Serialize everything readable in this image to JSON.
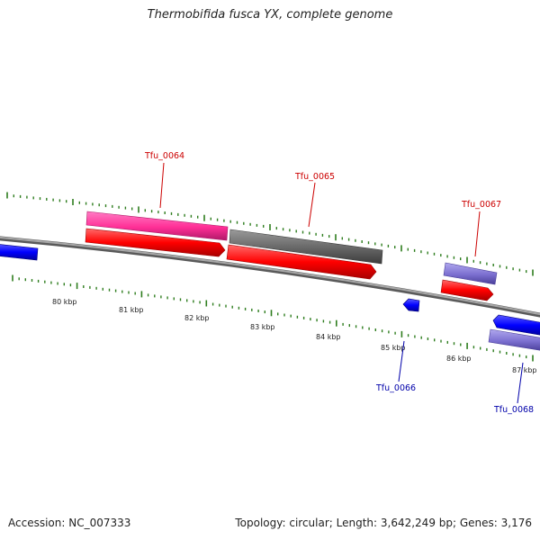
{
  "title": "Thermobifida fusca YX, complete genome",
  "footer": {
    "accession": "Accession: NC_007333",
    "summary": "Topology: circular; Length: 3,642,249 bp; Genes: 3,176"
  },
  "colors": {
    "backbone": "#8a8a8a",
    "tick": "#2e7d1e",
    "label_top": "#cc0000",
    "label_bottom": "#0000aa",
    "cds_forward": "#ff0000",
    "cds_reverse": "#0000ff",
    "gene_pink": "#ff3fa0",
    "gene_gray": "#6e6e6e",
    "gene_purple": "#7b6fd0"
  },
  "scale_labels": [
    "80 kbp",
    "81 kbp",
    "82 kbp",
    "83 kbp",
    "84 kbp",
    "85 kbp",
    "86 kbp",
    "87 kbp"
  ],
  "gene_labels": {
    "tfu_0064": "Tfu_0064",
    "tfu_0065": "Tfu_0065",
    "tfu_0066": "Tfu_0066",
    "tfu_0067": "Tfu_0067",
    "tfu_0068": "Tfu_0068"
  }
}
